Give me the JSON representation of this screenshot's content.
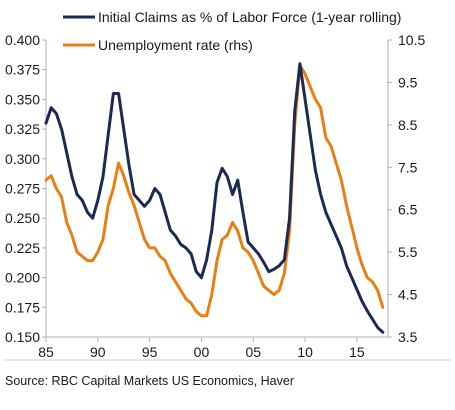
{
  "chart_data": {
    "type": "line",
    "title": "",
    "xlabel": "",
    "ylabel": "",
    "x_ticks": [
      "85",
      "90",
      "95",
      "00",
      "05",
      "10",
      "15"
    ],
    "x_tick_years": [
      1985,
      1990,
      1995,
      2000,
      2005,
      2010,
      2015
    ],
    "xlim": [
      1985,
      2018
    ],
    "ylim_left": [
      0.15,
      0.4
    ],
    "ylim_right": [
      3.5,
      10.5
    ],
    "left_ticks": [
      "0.400",
      "0.375",
      "0.350",
      "0.325",
      "0.300",
      "0.275",
      "0.250",
      "0.225",
      "0.200",
      "0.175",
      "0.150"
    ],
    "right_ticks": [
      "10.5",
      "9.5",
      "8.5",
      "7.5",
      "6.5",
      "5.5",
      "4.5",
      "3.5"
    ],
    "grid": false,
    "legend_position": "top-left",
    "source": "Source: RBC Capital Markets US Economics, Haver",
    "series": [
      {
        "name": "Initial Claims as % of Labor Force (1-year rolling)",
        "axis": "left",
        "color": "#1b2a52",
        "x": [
          1985,
          1985.5,
          1986,
          1986.5,
          1987,
          1987.5,
          1988,
          1988.5,
          1989,
          1989.5,
          1990,
          1990.5,
          1991,
          1991.5,
          1992,
          1992.5,
          1993,
          1993.5,
          1994,
          1994.5,
          1995,
          1995.5,
          1996,
          1996.5,
          1997,
          1997.5,
          1998,
          1998.5,
          1999,
          1999.5,
          2000,
          2000.5,
          2001,
          2001.5,
          2002,
          2002.5,
          2003,
          2003.5,
          2004,
          2004.5,
          2005,
          2005.5,
          2006,
          2006.5,
          2007,
          2007.5,
          2008,
          2008.5,
          2009,
          2009.5,
          2010,
          2010.5,
          2011,
          2011.5,
          2012,
          2012.5,
          2013,
          2013.5,
          2014,
          2014.5,
          2015,
          2015.5,
          2016,
          2016.5,
          2017,
          2017.5
        ],
        "values": [
          0.33,
          0.343,
          0.338,
          0.325,
          0.305,
          0.285,
          0.27,
          0.265,
          0.255,
          0.25,
          0.265,
          0.285,
          0.32,
          0.355,
          0.355,
          0.325,
          0.295,
          0.27,
          0.265,
          0.26,
          0.265,
          0.275,
          0.27,
          0.255,
          0.24,
          0.235,
          0.228,
          0.225,
          0.22,
          0.205,
          0.2,
          0.215,
          0.24,
          0.28,
          0.292,
          0.285,
          0.27,
          0.282,
          0.255,
          0.23,
          0.225,
          0.22,
          0.213,
          0.205,
          0.207,
          0.21,
          0.215,
          0.25,
          0.34,
          0.38,
          0.35,
          0.32,
          0.29,
          0.27,
          0.255,
          0.245,
          0.235,
          0.225,
          0.21,
          0.2,
          0.19,
          0.18,
          0.172,
          0.165,
          0.158,
          0.154
        ]
      },
      {
        "name": "Unemployment rate (rhs)",
        "axis": "right",
        "color": "#e87f14",
        "x": [
          1985,
          1985.5,
          1986,
          1986.5,
          1987,
          1987.5,
          1988,
          1988.5,
          1989,
          1989.5,
          1990,
          1990.5,
          1991,
          1991.5,
          1992,
          1992.5,
          1993,
          1993.5,
          1994,
          1994.5,
          1995,
          1995.5,
          1996,
          1996.5,
          1997,
          1997.5,
          1998,
          1998.5,
          1999,
          1999.5,
          2000,
          2000.5,
          2001,
          2001.5,
          2002,
          2002.5,
          2003,
          2003.5,
          2004,
          2004.5,
          2005,
          2005.5,
          2006,
          2006.5,
          2007,
          2007.5,
          2008,
          2008.5,
          2009,
          2009.5,
          2010,
          2010.5,
          2011,
          2011.5,
          2012,
          2012.5,
          2013,
          2013.5,
          2014,
          2014.5,
          2015,
          2015.5,
          2016,
          2016.5,
          2017,
          2017.5
        ],
        "values": [
          7.2,
          7.3,
          7.0,
          6.8,
          6.2,
          5.9,
          5.5,
          5.4,
          5.3,
          5.3,
          5.5,
          5.8,
          6.6,
          7.0,
          7.6,
          7.3,
          6.9,
          6.6,
          6.2,
          5.8,
          5.6,
          5.6,
          5.4,
          5.3,
          5.0,
          4.8,
          4.6,
          4.4,
          4.3,
          4.1,
          4.0,
          4.0,
          4.5,
          5.3,
          5.8,
          5.9,
          6.2,
          6.0,
          5.6,
          5.5,
          5.3,
          5.0,
          4.7,
          4.6,
          4.5,
          4.6,
          5.0,
          6.0,
          8.5,
          9.9,
          9.7,
          9.4,
          9.1,
          8.9,
          8.2,
          8.0,
          7.6,
          7.2,
          6.6,
          6.1,
          5.6,
          5.2,
          4.9,
          4.8,
          4.6,
          4.2
        ]
      }
    ]
  }
}
